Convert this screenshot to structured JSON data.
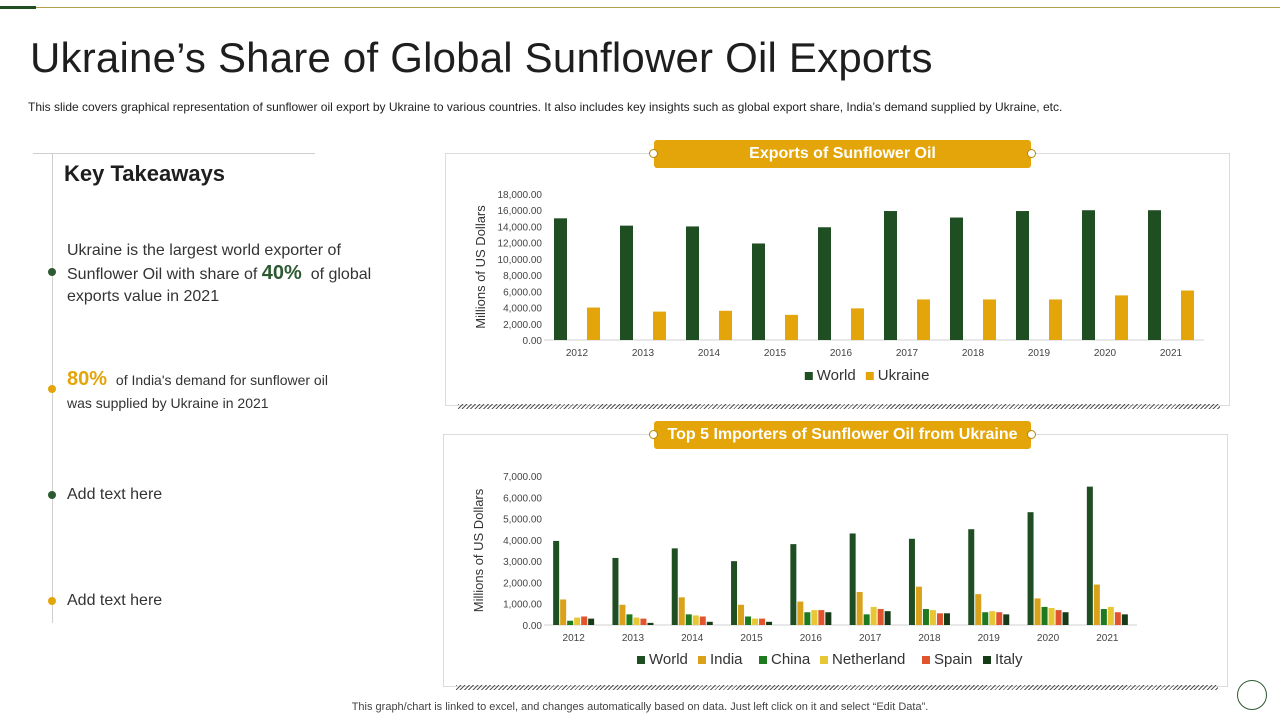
{
  "page": {
    "title": "Ukraine’s Share of Global Sunflower Oil Exports",
    "subtitle": "This slide covers graphical representation of sunflower  oil export by Ukraine to various  countries.  It also includes key insights such as global export share, India’s demand supplied by Ukraine, etc.",
    "footnote": "This graph/chart is linked to excel,  and changes automatically based on data. Just left click on it and select “Edit Data”."
  },
  "takeaways": {
    "heading": "Key Takeaways",
    "item1": {
      "line1": "Ukraine is the largest world exporter of",
      "line2_pre": "Sunflower Oil with share of",
      "highlight": "40%",
      "line2_post": "of global",
      "line3": "exports value in 2021"
    },
    "item2": {
      "highlight": "80%",
      "line1_post": "of India's demand for sunflower oil",
      "line2": "was supplied by Ukraine in 2021"
    },
    "item3": {
      "text": "Add text here"
    },
    "item4": {
      "text": "Add text here"
    }
  },
  "colors": {
    "world": "#1f4e23",
    "india": "#d9a21a",
    "china": "#1e7a1e",
    "netherland": "#e8c735",
    "spain": "#e0542e",
    "italy": "#173b17",
    "ukraine": "#e3a50a",
    "accent": "#e3a50a"
  },
  "chart_data": [
    {
      "type": "bar",
      "title": "Exports of Sunflower Oil",
      "ylabel": "Millions of US Dollars",
      "xlabel": "",
      "ylim": [
        0,
        18000
      ],
      "yticks": [
        "0.00",
        "2,000.00",
        "4,000.00",
        "6,000.00",
        "8,000.00",
        "10,000.00",
        "12,000.00",
        "14,000.00",
        "16,000.00",
        "18,000.00"
      ],
      "categories": [
        "2012",
        "2013",
        "2014",
        "2015",
        "2016",
        "2017",
        "2018",
        "2019",
        "2020",
        "2021"
      ],
      "series": [
        {
          "name": "World",
          "values": [
            15000,
            14100,
            14000,
            11900,
            13900,
            15900,
            15100,
            15900,
            16000,
            16000
          ]
        },
        {
          "name": "Ukraine",
          "values": [
            4000,
            3500,
            3600,
            3100,
            3900,
            5000,
            5000,
            5000,
            5500,
            6100
          ]
        }
      ],
      "legend": "bottom"
    },
    {
      "type": "bar",
      "title": "Top 5 Importers of Sunflower Oil from Ukraine",
      "ylabel": "Millions of US Dollars",
      "xlabel": "",
      "ylim": [
        0,
        7000
      ],
      "yticks": [
        "0.00",
        "1,000.00",
        "2,000.00",
        "3,000.00",
        "4,000.00",
        "5,000.00",
        "6,000.00",
        "7,000.00"
      ],
      "categories": [
        "2012",
        "2013",
        "2014",
        "2015",
        "2016",
        "2017",
        "2018",
        "2019",
        "2020",
        "2021"
      ],
      "series": [
        {
          "name": "World",
          "values": [
            3950,
            3150,
            3600,
            3000,
            3800,
            4300,
            4050,
            4500,
            5300,
            6500
          ]
        },
        {
          "name": "India",
          "values": [
            1200,
            950,
            1300,
            950,
            1100,
            1550,
            1800,
            1450,
            1250,
            1900
          ]
        },
        {
          "name": "China",
          "values": [
            200,
            500,
            500,
            400,
            600,
            500,
            750,
            600,
            850,
            750
          ]
        },
        {
          "name": "Netherland",
          "values": [
            350,
            350,
            450,
            300,
            700,
            850,
            700,
            650,
            800,
            850
          ]
        },
        {
          "name": "Spain",
          "values": [
            400,
            300,
            400,
            300,
            700,
            750,
            550,
            600,
            700,
            600
          ]
        },
        {
          "name": "Italy",
          "values": [
            300,
            100,
            150,
            150,
            600,
            650,
            550,
            500,
            600,
            500
          ]
        }
      ],
      "legend": "bottom"
    }
  ]
}
